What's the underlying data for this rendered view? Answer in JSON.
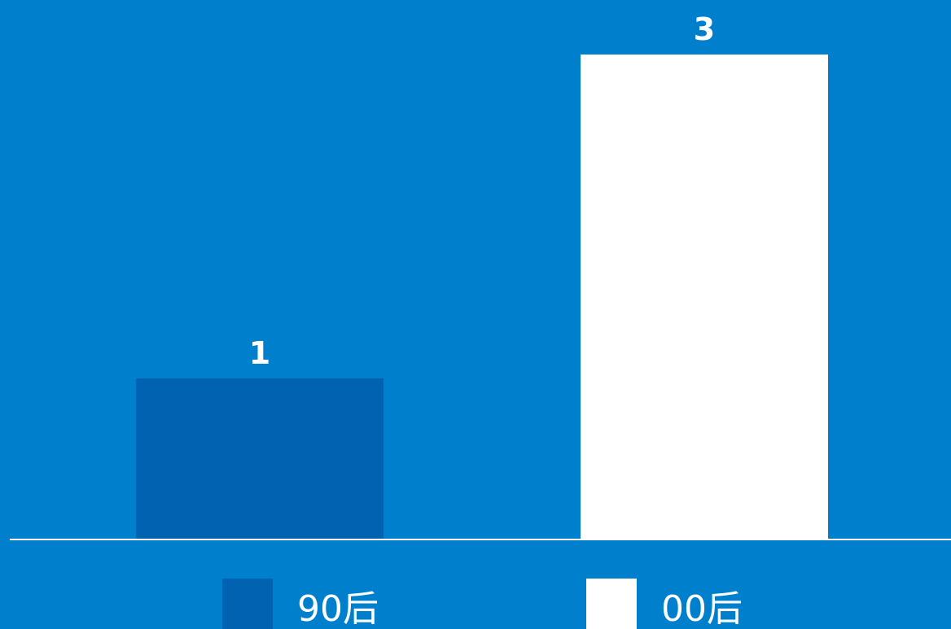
{
  "background_color": "#0080CC",
  "chart_data": {
    "type": "bar",
    "categories": [
      "90后",
      "00后"
    ],
    "values": [
      1,
      3
    ],
    "colors": [
      "#0062B0",
      "#FFFFFF"
    ],
    "data_labels": [
      "1",
      "3"
    ],
    "ylim": [
      0,
      3
    ],
    "grid": false,
    "legend_position": "bottom",
    "legend": [
      {
        "label": "90后",
        "color": "#0062B0"
      },
      {
        "label": "00后",
        "color": "#FFFFFF"
      }
    ]
  }
}
